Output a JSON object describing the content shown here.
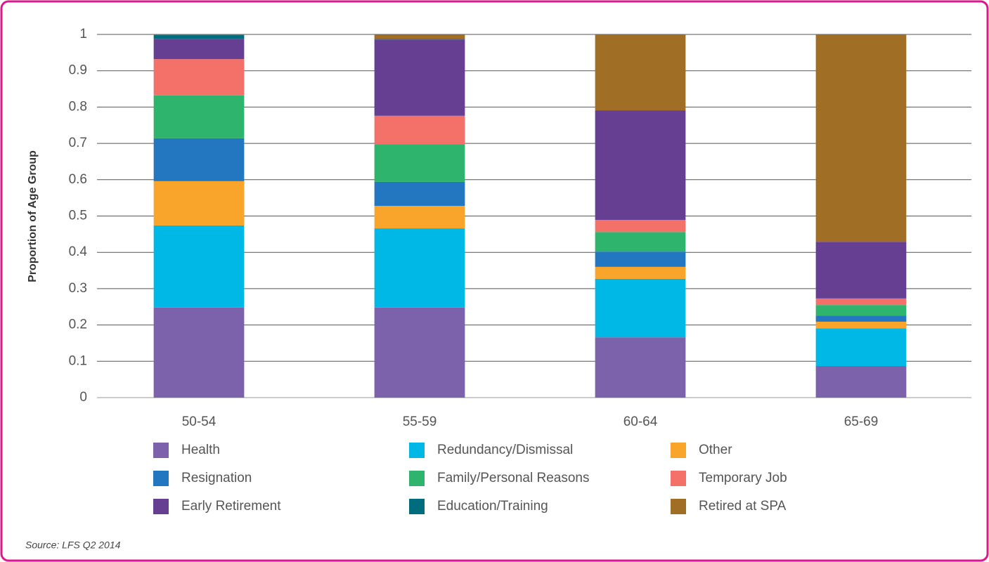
{
  "chart_data": {
    "type": "stacked_bar",
    "y_label": "Proportion of Age Group",
    "source": "Source: LFS Q2 2014",
    "categories": [
      "50-54",
      "55-59",
      "60-64",
      "65-69"
    ],
    "series": [
      {
        "name": "Health",
        "color": "#7b62ab",
        "values": [
          0.248,
          0.248,
          0.166,
          0.087
        ]
      },
      {
        "name": "Redundancy/Dismissal",
        "color": "#00b8e6",
        "values": [
          0.226,
          0.218,
          0.161,
          0.104
        ]
      },
      {
        "name": "Other",
        "color": "#f9a52b",
        "values": [
          0.122,
          0.062,
          0.033,
          0.018
        ]
      },
      {
        "name": "Resignation",
        "color": "#2277c0",
        "values": [
          0.118,
          0.066,
          0.042,
          0.017
        ]
      },
      {
        "name": "Family/Personal Reasons",
        "color": "#2eb46c",
        "values": [
          0.118,
          0.104,
          0.054,
          0.029
        ]
      },
      {
        "name": "Temporary Job",
        "color": "#f4716a",
        "values": [
          0.1,
          0.078,
          0.033,
          0.018
        ]
      },
      {
        "name": "Early Retirement",
        "color": "#663f93",
        "values": [
          0.056,
          0.21,
          0.302,
          0.156
        ]
      },
      {
        "name": "Education/Training",
        "color": "#006d7e",
        "values": [
          0.01,
          0.002,
          0,
          0
        ]
      },
      {
        "name": "Retired at SPA",
        "color": "#a16e25",
        "values": [
          0.002,
          0.012,
          0.209,
          0.571
        ]
      }
    ],
    "ylim": [
      0,
      1
    ],
    "yticks": [
      0,
      0.1,
      0.2,
      0.3,
      0.4,
      0.5,
      0.6,
      0.7,
      0.8,
      0.9,
      1
    ],
    "grid": true
  }
}
